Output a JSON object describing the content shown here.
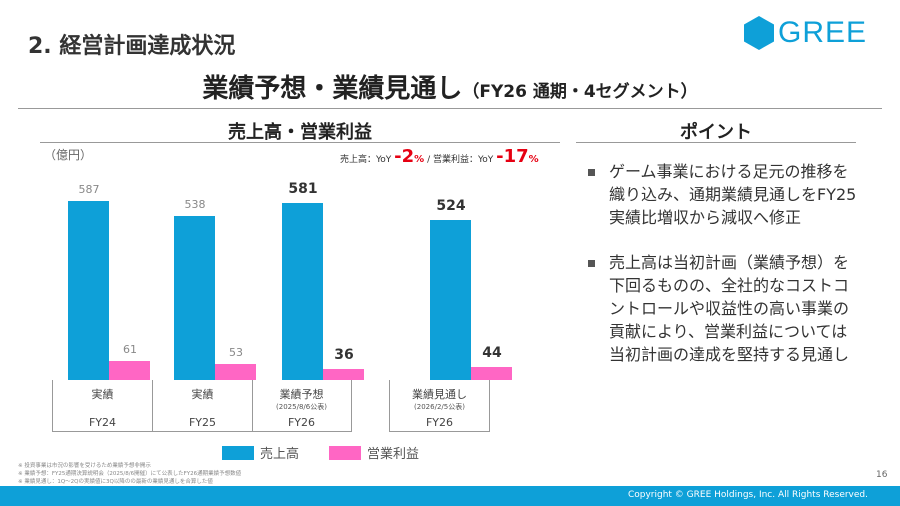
{
  "section_title": "2. 経営計画達成状況",
  "logo": "GREE",
  "title": "業績予想・業績見通し",
  "title_suffix": "（FY26 通期・4セグメント）",
  "chart_heading": "売上高・営業利益",
  "points_heading": "ポイント",
  "unit": "（億円）",
  "yoy": {
    "sales_label": "売上高：YoY ",
    "sales_value": "-2",
    "pct": "%",
    "sep": " / ",
    "op_label": "営業利益：YoY ",
    "op_value": "-17"
  },
  "colors": {
    "sales": "#0ea0d8",
    "op": "#ff66c4"
  },
  "chart_data": {
    "type": "bar",
    "categories": [
      "FY24 実績",
      "FY25 実績",
      "FY26 業績予想",
      "FY26 業績見通し"
    ],
    "series": [
      {
        "name": "売上高",
        "values": [
          587,
          538,
          581,
          524
        ]
      },
      {
        "name": "営業利益",
        "values": [
          61,
          53,
          36,
          44
        ]
      }
    ],
    "labels": {
      "sales": [
        "587",
        "538",
        "581",
        "524"
      ],
      "op": [
        "61",
        "53",
        "36",
        "44"
      ]
    },
    "ylim": [
      0,
      600
    ]
  },
  "cells": [
    {
      "type": "実績",
      "date": "",
      "fy": "FY24"
    },
    {
      "type": "実績",
      "date": "",
      "fy": "FY25"
    },
    {
      "type": "業績予想",
      "date": "(2025/8/6公表)",
      "fy": "FY26"
    },
    {
      "type": "業績見通し",
      "date": "(2026/2/5公表)",
      "fy": "FY26"
    }
  ],
  "legend": {
    "sales": "売上高",
    "op": "営業利益"
  },
  "notes": [
    "※ 投資事業は市況の影響を受けるため業績予想非開示",
    "※ 業績予想：FY25通期決算説明会（2025/8/6開催）にて公表したFY26通期業績予想数値",
    "※ 業績見通し：1Q～2Qの実績値に3Q以降のの最新の業績見通しを合算した値"
  ],
  "points": [
    "ゲーム事業における足元の推移を織り込み、通期業績見通しをFY25実績比増収から減収へ修正",
    "売上高は当初計画（業績予想）を下回るものの、全社的なコストコントロールや収益性の高い事業の貢献により、営業利益については当初計画の達成を堅持する見通し"
  ],
  "page": "16",
  "copyright": "Copyright © GREE Holdings, Inc. All Rights Reserved."
}
